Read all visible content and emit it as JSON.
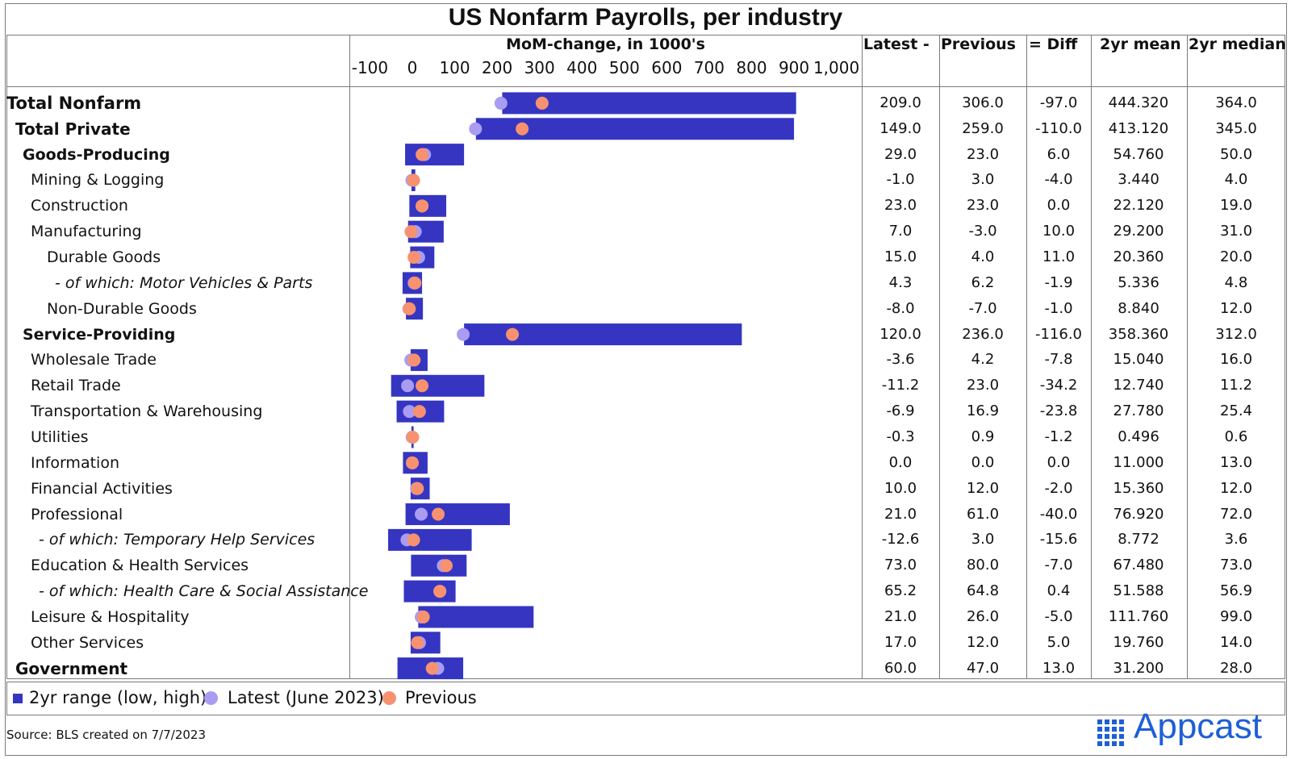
{
  "chart_data": {
    "type": "bar",
    "title": "US Nonfarm Payrolls, per industry",
    "xlabel": "MoM-change, in 1000's",
    "xlim": [
      -100,
      1000
    ],
    "ticks": [
      "-100",
      "0",
      "100",
      "200",
      "300",
      "400",
      "500",
      "600",
      "700",
      "800",
      "900",
      "1,000"
    ],
    "tick_values": [
      -100,
      0,
      100,
      200,
      300,
      400,
      500,
      600,
      700,
      800,
      900,
      1000
    ],
    "columns": [
      "Latest -",
      "Previous",
      "= Diff",
      "2yr mean",
      "2yr median"
    ],
    "legend": {
      "range": "2yr range (low, high)",
      "latest": "Latest (June 2023)",
      "previous": "Previous"
    },
    "colors": {
      "range": "#3535c2",
      "latest": "#a99cf2",
      "previous": "#f7916f"
    },
    "rows": [
      {
        "label": "Total Nonfarm",
        "style": "bold1",
        "low": 212,
        "high": 905,
        "latest": 209,
        "previous": 306,
        "cols": [
          "209.0",
          "306.0",
          "-97.0",
          "444.320",
          "364.0"
        ]
      },
      {
        "label": "Total Private",
        "style": "bold2",
        "low": 150,
        "high": 900,
        "latest": 149,
        "previous": 259,
        "cols": [
          "149.0",
          "259.0",
          "-110.0",
          "413.120",
          "345.0"
        ]
      },
      {
        "label": "Goods-Producing",
        "style": "bold3",
        "low": -17,
        "high": 122,
        "latest": 29,
        "previous": 23,
        "cols": [
          "29.0",
          "23.0",
          "6.0",
          "54.760",
          "50.0"
        ]
      },
      {
        "label": "Mining & Logging",
        "style": "l2",
        "low": -2,
        "high": 7,
        "latest": -1,
        "previous": 3,
        "cols": [
          "-1.0",
          "3.0",
          "-4.0",
          "3.440",
          "4.0"
        ]
      },
      {
        "label": "Construction",
        "style": "l2",
        "low": -7,
        "high": 80,
        "latest": 23,
        "previous": 23,
        "cols": [
          "23.0",
          "23.0",
          "0.0",
          "22.120",
          "19.0"
        ]
      },
      {
        "label": "Manufacturing",
        "style": "l2",
        "low": -10,
        "high": 74,
        "latest": 7,
        "previous": -3,
        "cols": [
          "7.0",
          "-3.0",
          "10.0",
          "29.200",
          "31.0"
        ]
      },
      {
        "label": "Durable Goods",
        "style": "l3",
        "low": -5,
        "high": 52,
        "latest": 15,
        "previous": 4,
        "cols": [
          "15.0",
          "4.0",
          "11.0",
          "20.360",
          "20.0"
        ]
      },
      {
        "label": "- of which: Motor Vehicles & Parts",
        "style": "l3i",
        "low": -23,
        "high": 23,
        "latest": 4.3,
        "previous": 6.2,
        "cols": [
          "4.3",
          "6.2",
          "-1.9",
          "5.336",
          "4.8"
        ]
      },
      {
        "label": "Non-Durable Goods",
        "style": "l3",
        "low": -15,
        "high": 25,
        "latest": -8,
        "previous": -7,
        "cols": [
          "-8.0",
          "-7.0",
          "-1.0",
          "8.840",
          "12.0"
        ]
      },
      {
        "label": "Service-Providing",
        "style": "bold3",
        "low": 122,
        "high": 777,
        "latest": 120,
        "previous": 236,
        "cols": [
          "120.0",
          "236.0",
          "-116.0",
          "358.360",
          "312.0"
        ]
      },
      {
        "label": "Wholesale Trade",
        "style": "l2",
        "low": -4,
        "high": 36,
        "latest": -3.6,
        "previous": 4.2,
        "cols": [
          "-3.6",
          "4.2",
          "-7.8",
          "15.040",
          "16.0"
        ]
      },
      {
        "label": "Retail Trade",
        "style": "l2",
        "low": -50,
        "high": 170,
        "latest": -11.2,
        "previous": 23,
        "cols": [
          "-11.2",
          "23.0",
          "-34.2",
          "12.740",
          "11.2"
        ]
      },
      {
        "label": "Transportation & Warehousing",
        "style": "l2",
        "low": -37,
        "high": 75,
        "latest": -6.9,
        "previous": 16.9,
        "cols": [
          "-6.9",
          "16.9",
          "-23.8",
          "27.780",
          "25.4"
        ]
      },
      {
        "label": "Utilities",
        "style": "l2",
        "low": -2,
        "high": 3,
        "latest": -0.3,
        "previous": 0.9,
        "cols": [
          "-0.3",
          "0.9",
          "-1.2",
          "0.496",
          "0.6"
        ]
      },
      {
        "label": "Information",
        "style": "l2",
        "low": -22,
        "high": 36,
        "latest": 0,
        "previous": 0,
        "cols": [
          "0.0",
          "0.0",
          "0.0",
          "11.000",
          "13.0"
        ]
      },
      {
        "label": "Financial Activities",
        "style": "l2",
        "low": -4,
        "high": 41,
        "latest": 10,
        "previous": 12,
        "cols": [
          "10.0",
          "12.0",
          "-2.0",
          "15.360",
          "12.0"
        ]
      },
      {
        "label": "Professional",
        "style": "l2",
        "low": -16,
        "high": 230,
        "latest": 21,
        "previous": 61,
        "cols": [
          "21.0",
          "61.0",
          "-40.0",
          "76.920",
          "72.0"
        ]
      },
      {
        "label": "- of which: Temporary Help Services",
        "style": "l1i",
        "low": -57,
        "high": 140,
        "latest": -12.6,
        "previous": 3,
        "cols": [
          "-12.6",
          "3.0",
          "-15.6",
          "8.772",
          "3.6"
        ]
      },
      {
        "label": "Education & Health Services",
        "style": "l2",
        "low": -3,
        "high": 128,
        "latest": 73,
        "previous": 80,
        "cols": [
          "73.0",
          "80.0",
          "-7.0",
          "67.480",
          "73.0"
        ]
      },
      {
        "label": "- of which: Health Care & Social Assistance",
        "style": "l1i",
        "low": -20,
        "high": 102,
        "latest": 65.2,
        "previous": 64.8,
        "cols": [
          "65.2",
          "64.8",
          "0.4",
          "51.588",
          "56.9"
        ]
      },
      {
        "label": "Leisure & Hospitality",
        "style": "l2",
        "low": 14,
        "high": 286,
        "latest": 21,
        "previous": 26,
        "cols": [
          "21.0",
          "26.0",
          "-5.0",
          "111.760",
          "99.0"
        ]
      },
      {
        "label": "Other Services",
        "style": "l2",
        "low": -4,
        "high": 66,
        "latest": 17,
        "previous": 12,
        "cols": [
          "17.0",
          "12.0",
          "5.0",
          "19.760",
          "14.0"
        ]
      },
      {
        "label": "Government",
        "style": "bold2",
        "low": -35,
        "high": 120,
        "latest": 60,
        "previous": 47,
        "cols": [
          "60.0",
          "47.0",
          "13.0",
          "31.200",
          "28.0"
        ]
      }
    ]
  },
  "source": "Source: BLS created on 7/7/2023",
  "logo": "Appcast"
}
